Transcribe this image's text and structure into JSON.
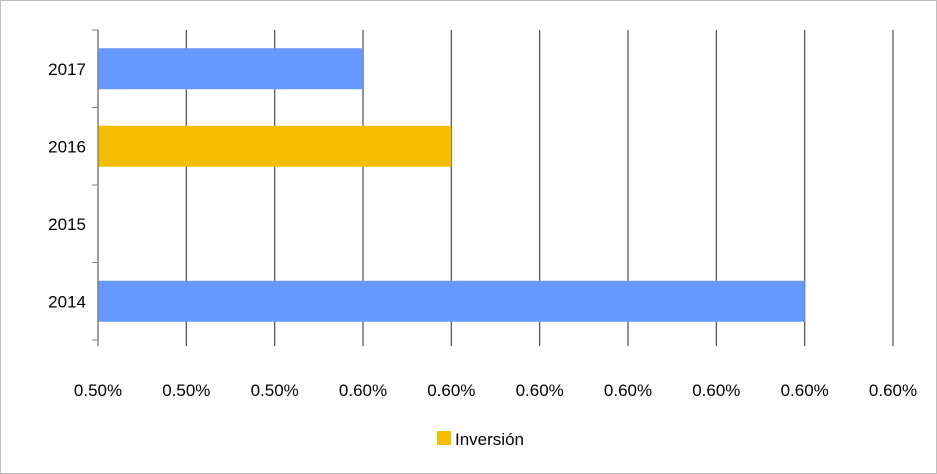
{
  "chart_data": {
    "type": "bar",
    "orientation": "horizontal",
    "categories": [
      "2014",
      "2015",
      "2016",
      "2017"
    ],
    "x_tick_labels": [
      "0.50%",
      "0.50%",
      "0.50%",
      "0.60%",
      "0.60%",
      "0.60%",
      "0.60%",
      "0.60%",
      "0.60%",
      "0.60%"
    ],
    "bars": [
      {
        "category": "2017",
        "value": 3.0,
        "color": "#6699ff"
      },
      {
        "category": "2016",
        "value": 4.0,
        "color": "#f5bd00"
      },
      {
        "category": "2015",
        "value": null,
        "color": "#6699ff"
      },
      {
        "category": "2014",
        "value": 8.0,
        "color": "#6699ff"
      }
    ],
    "xlim": [
      0,
      9
    ],
    "grid": true,
    "legend": {
      "placement": "bottom",
      "entries": [
        {
          "name": "Inversión",
          "color": "#f5bd00"
        }
      ]
    },
    "title": "",
    "xlabel": "",
    "ylabel": ""
  }
}
